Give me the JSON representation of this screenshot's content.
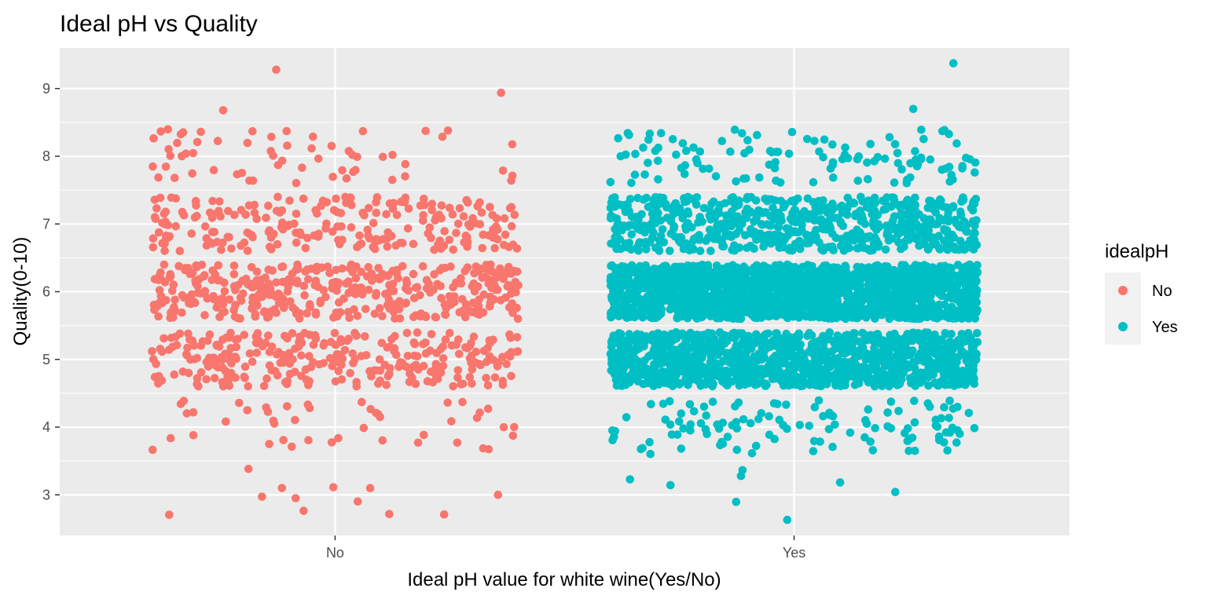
{
  "chart_data": {
    "type": "scatter",
    "title": "Ideal pH vs Quality",
    "xlabel": "Ideal pH value for white wine(Yes/No)",
    "ylabel": "Quality(0-10)",
    "categories": [
      "No",
      "Yes"
    ],
    "ylim": [
      2.4,
      9.6
    ],
    "yticks": [
      3,
      4,
      5,
      6,
      7,
      8,
      9
    ],
    "jitter": {
      "x_width": 0.4,
      "y_width": 0.4
    },
    "grid": true,
    "legend": {
      "title": "idealpH",
      "placement": "right",
      "entries": [
        "No",
        "Yes"
      ]
    },
    "colors": {
      "No": "#F8766D",
      "Yes": "#00BFC4",
      "panel": "#EBEBEB",
      "grid": "#FFFFFF"
    },
    "series": [
      {
        "name": "No",
        "category": "No",
        "quality_counts": {
          "3": 12,
          "4": 45,
          "5": 290,
          "6": 390,
          "7": 230,
          "8": 60,
          "9": 3
        }
      },
      {
        "name": "Yes",
        "category": "Yes",
        "quality_counts": {
          "3": 8,
          "4": 118,
          "5": 1168,
          "6": 1808,
          "7": 650,
          "8": 115,
          "9": 2
        }
      }
    ]
  }
}
